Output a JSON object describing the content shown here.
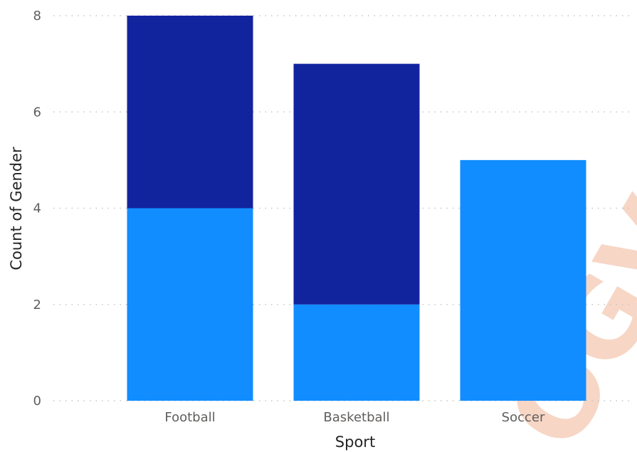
{
  "chart_data": {
    "type": "bar",
    "stacked": true,
    "categories": [
      "Football",
      "Basketball",
      "Soccer"
    ],
    "series": [
      {
        "values": [
          4,
          2,
          5
        ],
        "color": "#118DFF"
      },
      {
        "values": [
          4,
          5,
          0
        ],
        "color": "#12239E"
      }
    ],
    "xlabel": "Sport",
    "ylabel": "Count of Gender",
    "ylim": [
      0,
      8
    ],
    "yticks": [
      0,
      2,
      4,
      6,
      8
    ],
    "grid": true,
    "legend": "none"
  },
  "watermark": {
    "text": "OGV"
  }
}
